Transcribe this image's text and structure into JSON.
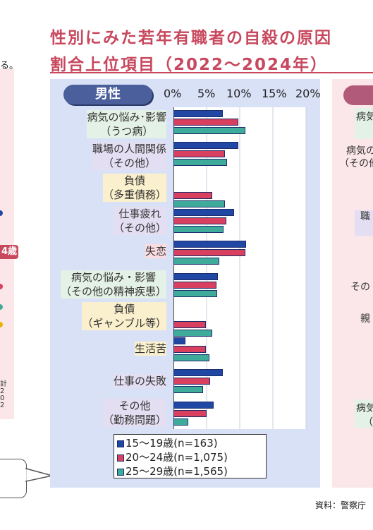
{
  "title": {
    "line1": "性別にみた若年有職者の自殺の原因",
    "line2": "割合上位項目（2022〜2024年）"
  },
  "left_fragment": {
    "text": "る。",
    "age_badge": "4歳",
    "vertical_text": "計202"
  },
  "male_label": "男性",
  "female_fragment_labels": [
    "病気",
    "病気の",
    "（その他",
    "職",
    "その",
    "親",
    "病気",
    "（"
  ],
  "source": "資料：警察庁",
  "colors": {
    "c15_19": "#1f47a3",
    "c20_24": "#d9405f",
    "c25_29": "#3fab9b",
    "title": "#c8485e",
    "panel": "#d9e1f7"
  },
  "chart_data": {
    "type": "bar",
    "orientation": "horizontal",
    "x_ticks": [
      "0%",
      "5%",
      "10%",
      "15%",
      "20%"
    ],
    "xlim": [
      0,
      20
    ],
    "categories": [
      {
        "label": [
          "病気の悩み･影響",
          "（うつ病）"
        ],
        "highlight": "#e4f1e6"
      },
      {
        "label": [
          "職場の人間関係",
          "（その他）"
        ],
        "highlight": "#e3def2"
      },
      {
        "label": [
          "負債",
          "（多重債務）"
        ],
        "highlight": "#fbf0cd"
      },
      {
        "label": [
          "仕事疲れ",
          "（その他）"
        ],
        "highlight": "#e3def2"
      },
      {
        "label": [
          "失恋"
        ],
        "highlight": "#fbdde2"
      },
      {
        "label": [
          "病気の悩み・影響",
          "（その他の精神疾患）"
        ],
        "highlight": "#e4f1e6"
      },
      {
        "label": [
          "負債",
          "（ギャンブル等）"
        ],
        "highlight": "#fbf0cd"
      },
      {
        "label": [
          "生活苦"
        ],
        "highlight": "#fbf0cd"
      },
      {
        "label": [
          "仕事の失敗"
        ],
        "highlight": "#e3def2"
      },
      {
        "label": [
          "その他",
          "（勤務問題）"
        ],
        "highlight": "#e3def2"
      }
    ],
    "series": [
      {
        "name": "15～19歳(n=163)",
        "values": [
          7.4,
          9.8,
          0.0,
          9.2,
          11.0,
          6.7,
          0.0,
          1.8,
          7.4,
          6.1
        ]
      },
      {
        "name": "20～24歳(n=1,075)",
        "values": [
          9.8,
          7.8,
          5.9,
          8.0,
          10.8,
          6.5,
          4.9,
          4.9,
          5.5,
          5.0
        ]
      },
      {
        "name": "25～29歳(n=1,565)",
        "values": [
          10.9,
          8.1,
          7.8,
          7.6,
          6.9,
          6.6,
          5.8,
          5.4,
          4.5,
          2.2
        ]
      }
    ]
  }
}
